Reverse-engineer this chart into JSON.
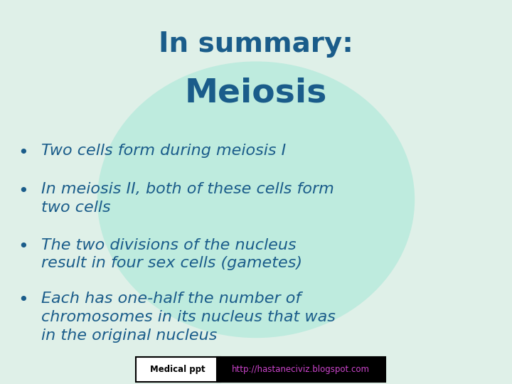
{
  "title_line1": "In summary:",
  "title_line2": "Meiosis",
  "title_color": "#1a5c8a",
  "bg_color": "#dff0e8",
  "bullet_text_color": "#1a5c8a",
  "bullets": [
    "Two cells form during meiosis I",
    "In meiosis II, both of these cells form\ntwo cells",
    "The two divisions of the nucleus\nresult in four sex cells (gametes)",
    "Each has one-half the number of\nchromosomes in its nucleus that was\nin the original nucleus"
  ],
  "ellipse_color": "#a8e8d8",
  "footer_left_text": "Medical ppt",
  "footer_right_text": "http://hastaneciviz.blogspot.com",
  "footer_right_color": "#cc44cc",
  "footer_right_bg": "#000000",
  "footer_left_bg": "#ffffff",
  "footer_border": "#000000"
}
